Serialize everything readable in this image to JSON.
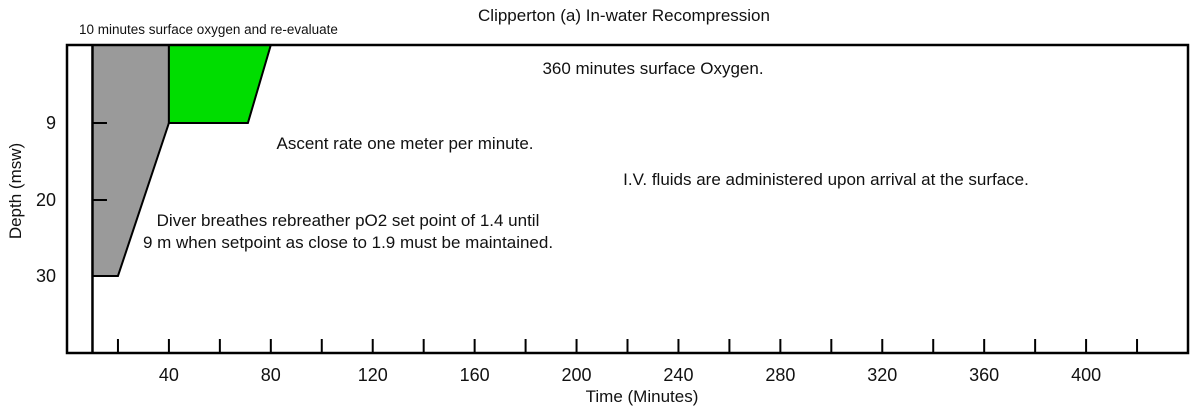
{
  "chart_data": {
    "type": "area",
    "title": "Clipperton (a) In-water Recompression",
    "xlabel": "Time (Minutes)",
    "ylabel": "Depth (msw)",
    "x_range": [
      0,
      440
    ],
    "x_tick_interval_min": 20,
    "x_ticks": [
      20,
      40,
      60,
      80,
      100,
      120,
      140,
      160,
      180,
      200,
      220,
      240,
      260,
      280,
      300,
      320,
      340,
      360,
      380,
      400,
      420
    ],
    "x_tick_labels": [
      40,
      80,
      120,
      160,
      200,
      240,
      280,
      320,
      360,
      400
    ],
    "y_ticks": [
      9,
      20,
      30
    ],
    "descent_line_time_min": 10,
    "ascent_rate_m_per_min": 1,
    "max_depth_msw": 30,
    "segments": [
      {
        "name": "treatment-descent-and-ascent",
        "fill": "#9a9a9a",
        "points_time_depth": [
          [
            10,
            0
          ],
          [
            40,
            0
          ],
          [
            40,
            9
          ],
          [
            20,
            30
          ],
          [
            10,
            30
          ]
        ]
      },
      {
        "name": "oxygen-stop-at-9m",
        "fill": "#00dd00",
        "points_time_depth": [
          [
            40,
            0
          ],
          [
            80,
            0
          ],
          [
            71,
            9
          ],
          [
            40,
            9
          ]
        ]
      }
    ]
  },
  "colors": {
    "line": "#000000",
    "text": "#111111",
    "background": "#ffffff",
    "treatment_gray": "#9a9a9a",
    "oxygen_green": "#00dd00"
  },
  "annotations": {
    "pre_note": "10 minutes surface oxygen and re-evaluate",
    "surface_oxygen": "360 minutes surface Oxygen.",
    "ascent_rate": "Ascent rate one meter per minute.",
    "iv_fluids": "I.V. fluids are administered upon arrival at the surface.",
    "rebreather_line1": "Diver breathes rebreather pO2 set point of 1.4 until",
    "rebreather_line2": "9 m when setpoint as close to 1.9 must be maintained."
  }
}
